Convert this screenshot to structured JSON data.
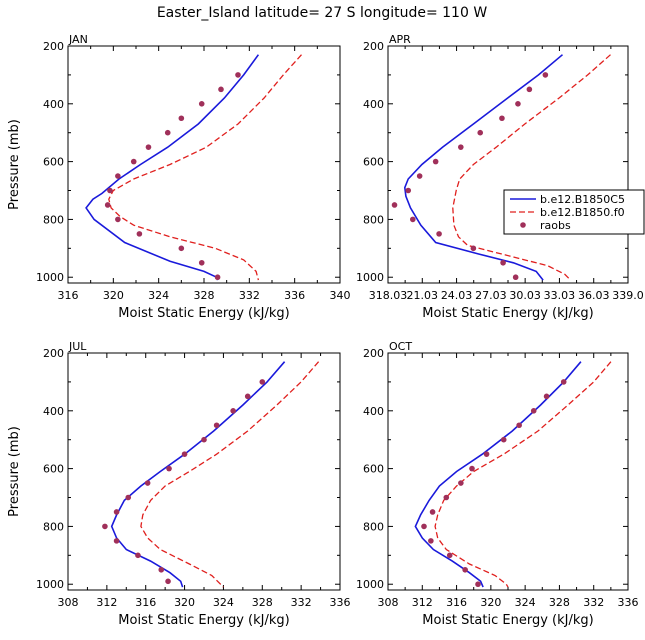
{
  "title": "Easter_Island   latitude= 27 S longitude= 110 W",
  "colors": {
    "model1": "#1a1adb",
    "model2": "#e0201e",
    "obs": "#a0305a",
    "axis": "#000000"
  },
  "legend": {
    "entries": [
      "b.e12.B1850C5",
      "b.e12.B1850.f0",
      "raobs"
    ]
  },
  "chart_data": [
    {
      "type": "line",
      "panel": "JAN",
      "xlabel": "Moist Static Energy (kJ/kg)",
      "ylabel": "Pressure (mb)",
      "xlim": [
        316,
        340
      ],
      "ylim": [
        200,
        1020
      ],
      "x_ticks": [
        316,
        320,
        324,
        328,
        332,
        336,
        340
      ],
      "x_tick_labels": [
        "316",
        "320",
        "324",
        "328",
        "332",
        "336",
        "340"
      ],
      "y_ticks": [
        200,
        400,
        600,
        800,
        1000
      ],
      "y_tick_labels": [
        "200",
        "400",
        "600",
        "800",
        "1000"
      ],
      "series": [
        {
          "name": "b.e12.B1850C5",
          "style": "solid",
          "points": [
            [
              332.8,
              230
            ],
            [
              331.5,
              300
            ],
            [
              329.8,
              380
            ],
            [
              327.5,
              470
            ],
            [
              324.8,
              550
            ],
            [
              322.4,
              610
            ],
            [
              320.5,
              660
            ],
            [
              319.0,
              710
            ],
            [
              318.2,
              730
            ],
            [
              317.6,
              760
            ],
            [
              318.3,
              800
            ],
            [
              321.0,
              880
            ],
            [
              325.0,
              945
            ],
            [
              328.0,
              980
            ],
            [
              329.1,
              1000
            ],
            [
              329.2,
              1010
            ]
          ]
        },
        {
          "name": "b.e12.B1850.f0",
          "style": "dashed",
          "points": [
            [
              336.6,
              230
            ],
            [
              335.0,
              300
            ],
            [
              333.3,
              380
            ],
            [
              331.0,
              470
            ],
            [
              328.2,
              550
            ],
            [
              325.0,
              610
            ],
            [
              321.8,
              660
            ],
            [
              320.0,
              700
            ],
            [
              319.6,
              730
            ],
            [
              319.8,
              760
            ],
            [
              320.6,
              790
            ],
            [
              321.8,
              820
            ],
            [
              325.0,
              860
            ],
            [
              329.0,
              900
            ],
            [
              331.5,
              940
            ],
            [
              332.6,
              980
            ],
            [
              332.8,
              1010
            ]
          ]
        }
      ],
      "obs": [
        [
          331.0,
          300
        ],
        [
          329.5,
          350
        ],
        [
          327.8,
          400
        ],
        [
          326.0,
          450
        ],
        [
          324.8,
          500
        ],
        [
          323.1,
          550
        ],
        [
          321.8,
          600
        ],
        [
          320.4,
          650
        ],
        [
          319.7,
          700
        ],
        [
          319.5,
          750
        ],
        [
          320.4,
          800
        ],
        [
          322.3,
          850
        ],
        [
          326.0,
          900
        ],
        [
          327.8,
          950
        ],
        [
          329.2,
          1000
        ]
      ]
    },
    {
      "type": "line",
      "panel": "APR",
      "xlabel": "Moist Static Energy (kJ/kg)",
      "ylabel": "",
      "xlim": [
        318.03,
        339.03
      ],
      "ylim": [
        200,
        1020
      ],
      "x_ticks": [
        318.03,
        321.03,
        324.03,
        327.03,
        330.03,
        333.03,
        336.03,
        339.03
      ],
      "x_tick_labels": [
        "318.03",
        "21.03",
        "24.03",
        "27.03",
        "30.03",
        "33.03",
        "36.03",
        "339.0"
      ],
      "y_ticks": [
        200,
        400,
        600,
        800,
        1000
      ],
      "y_tick_labels": [
        "200",
        "400",
        "600",
        "800",
        "1000"
      ],
      "series": [
        {
          "name": "b.e12.B1850C5",
          "style": "solid",
          "points": [
            [
              333.3,
              230
            ],
            [
              331.2,
              300
            ],
            [
              328.5,
              380
            ],
            [
              325.5,
              470
            ],
            [
              322.8,
              550
            ],
            [
              321.0,
              610
            ],
            [
              319.8,
              660
            ],
            [
              319.5,
              690
            ],
            [
              319.6,
              720
            ],
            [
              320.0,
              760
            ],
            [
              320.9,
              820
            ],
            [
              322.2,
              880
            ],
            [
              326.0,
              920
            ],
            [
              329.0,
              950
            ],
            [
              331.0,
              980
            ],
            [
              331.6,
              1010
            ]
          ]
        },
        {
          "name": "b.e12.B1850.f0",
          "style": "dashed",
          "points": [
            [
              337.5,
              230
            ],
            [
              335.5,
              300
            ],
            [
              333.0,
              380
            ],
            [
              330.0,
              470
            ],
            [
              327.5,
              550
            ],
            [
              325.5,
              610
            ],
            [
              324.3,
              660
            ],
            [
              324.0,
              700
            ],
            [
              323.7,
              760
            ],
            [
              323.8,
              820
            ],
            [
              324.2,
              860
            ],
            [
              325.0,
              890
            ],
            [
              329.0,
              930
            ],
            [
              332.0,
              960
            ],
            [
              333.5,
              990
            ],
            [
              334.0,
              1010
            ]
          ]
        }
      ],
      "obs": [
        [
          331.8,
          300
        ],
        [
          330.4,
          350
        ],
        [
          329.4,
          400
        ],
        [
          328.0,
          450
        ],
        [
          326.1,
          500
        ],
        [
          324.4,
          550
        ],
        [
          322.2,
          600
        ],
        [
          320.8,
          650
        ],
        [
          319.8,
          700
        ],
        [
          318.6,
          750
        ],
        [
          320.2,
          800
        ],
        [
          322.5,
          850
        ],
        [
          325.5,
          900
        ],
        [
          328.1,
          950
        ],
        [
          329.2,
          1000
        ]
      ]
    },
    {
      "type": "line",
      "panel": "JUL",
      "xlabel": "Moist Static Energy (kJ/kg)",
      "ylabel": "Pressure (mb)",
      "xlim": [
        308,
        336
      ],
      "ylim": [
        200,
        1020
      ],
      "x_ticks": [
        308,
        312,
        316,
        320,
        324,
        328,
        332,
        336
      ],
      "x_tick_labels": [
        "308",
        "312",
        "316",
        "320",
        "324",
        "328",
        "332",
        "336"
      ],
      "y_ticks": [
        200,
        400,
        600,
        800,
        1000
      ],
      "y_tick_labels": [
        "200",
        "400",
        "600",
        "800",
        "1000"
      ],
      "series": [
        {
          "name": "b.e12.B1850C5",
          "style": "solid",
          "points": [
            [
              330.3,
              230
            ],
            [
              328.5,
              300
            ],
            [
              326.0,
              380
            ],
            [
              323.0,
              470
            ],
            [
              320.0,
              550
            ],
            [
              317.5,
              610
            ],
            [
              315.5,
              660
            ],
            [
              313.8,
              710
            ],
            [
              313.0,
              760
            ],
            [
              312.5,
              800
            ],
            [
              313.0,
              840
            ],
            [
              314.0,
              880
            ],
            [
              316.5,
              920
            ],
            [
              318.5,
              960
            ],
            [
              319.6,
              990
            ],
            [
              319.8,
              1010
            ]
          ]
        },
        {
          "name": "b.e12.B1850.f0",
          "style": "dashed",
          "points": [
            [
              333.8,
              230
            ],
            [
              332.0,
              300
            ],
            [
              329.5,
              380
            ],
            [
              326.5,
              470
            ],
            [
              323.3,
              550
            ],
            [
              320.5,
              610
            ],
            [
              318.0,
              660
            ],
            [
              316.5,
              710
            ],
            [
              315.7,
              760
            ],
            [
              315.5,
              800
            ],
            [
              316.2,
              840
            ],
            [
              317.5,
              880
            ],
            [
              320.5,
              930
            ],
            [
              322.8,
              970
            ],
            [
              323.7,
              1000
            ],
            [
              324.0,
              1010
            ]
          ]
        }
      ],
      "obs": [
        [
          328.0,
          300
        ],
        [
          326.5,
          350
        ],
        [
          325.0,
          400
        ],
        [
          323.3,
          450
        ],
        [
          322.0,
          500
        ],
        [
          320.0,
          550
        ],
        [
          318.4,
          600
        ],
        [
          316.2,
          650
        ],
        [
          314.2,
          700
        ],
        [
          313.0,
          750
        ],
        [
          311.8,
          800
        ],
        [
          313.0,
          850
        ],
        [
          315.2,
          900
        ],
        [
          317.6,
          950
        ],
        [
          318.3,
          990
        ]
      ]
    },
    {
      "type": "line",
      "panel": "OCT",
      "xlabel": "Moist Static Energy (kJ/kg)",
      "ylabel": "",
      "xlim": [
        308,
        336
      ],
      "ylim": [
        200,
        1020
      ],
      "x_ticks": [
        308,
        312,
        316,
        320,
        324,
        328,
        332,
        336
      ],
      "x_tick_labels": [
        "308",
        "312",
        "316",
        "320",
        "324",
        "328",
        "332",
        "336"
      ],
      "y_ticks": [
        200,
        400,
        600,
        800,
        1000
      ],
      "y_tick_labels": [
        "200",
        "400",
        "600",
        "800",
        "1000"
      ],
      "series": [
        {
          "name": "b.e12.B1850C5",
          "style": "solid",
          "points": [
            [
              330.5,
              230
            ],
            [
              328.5,
              300
            ],
            [
              325.8,
              380
            ],
            [
              322.5,
              470
            ],
            [
              319.0,
              550
            ],
            [
              316.0,
              610
            ],
            [
              314.0,
              660
            ],
            [
              312.8,
              710
            ],
            [
              311.8,
              760
            ],
            [
              311.2,
              800
            ],
            [
              312.0,
              840
            ],
            [
              313.3,
              880
            ],
            [
              315.5,
              920
            ],
            [
              317.5,
              960
            ],
            [
              318.8,
              990
            ],
            [
              319.1,
              1010
            ]
          ]
        },
        {
          "name": "b.e12.B1850.f0",
          "style": "dashed",
          "points": [
            [
              334.0,
              230
            ],
            [
              332.0,
              300
            ],
            [
              329.0,
              380
            ],
            [
              325.5,
              470
            ],
            [
              321.5,
              550
            ],
            [
              318.0,
              610
            ],
            [
              316.0,
              660
            ],
            [
              314.5,
              710
            ],
            [
              313.8,
              760
            ],
            [
              313.5,
              800
            ],
            [
              313.8,
              840
            ],
            [
              314.8,
              880
            ],
            [
              317.5,
              930
            ],
            [
              320.5,
              970
            ],
            [
              321.8,
              1000
            ],
            [
              322.0,
              1010
            ]
          ]
        }
      ],
      "obs": [
        [
          328.5,
          300
        ],
        [
          326.5,
          350
        ],
        [
          325.0,
          400
        ],
        [
          323.3,
          450
        ],
        [
          321.5,
          500
        ],
        [
          319.5,
          550
        ],
        [
          317.8,
          600
        ],
        [
          316.5,
          650
        ],
        [
          314.8,
          700
        ],
        [
          313.2,
          750
        ],
        [
          312.2,
          800
        ],
        [
          313.0,
          850
        ],
        [
          315.2,
          900
        ],
        [
          317.0,
          950
        ],
        [
          318.5,
          1000
        ]
      ]
    }
  ]
}
